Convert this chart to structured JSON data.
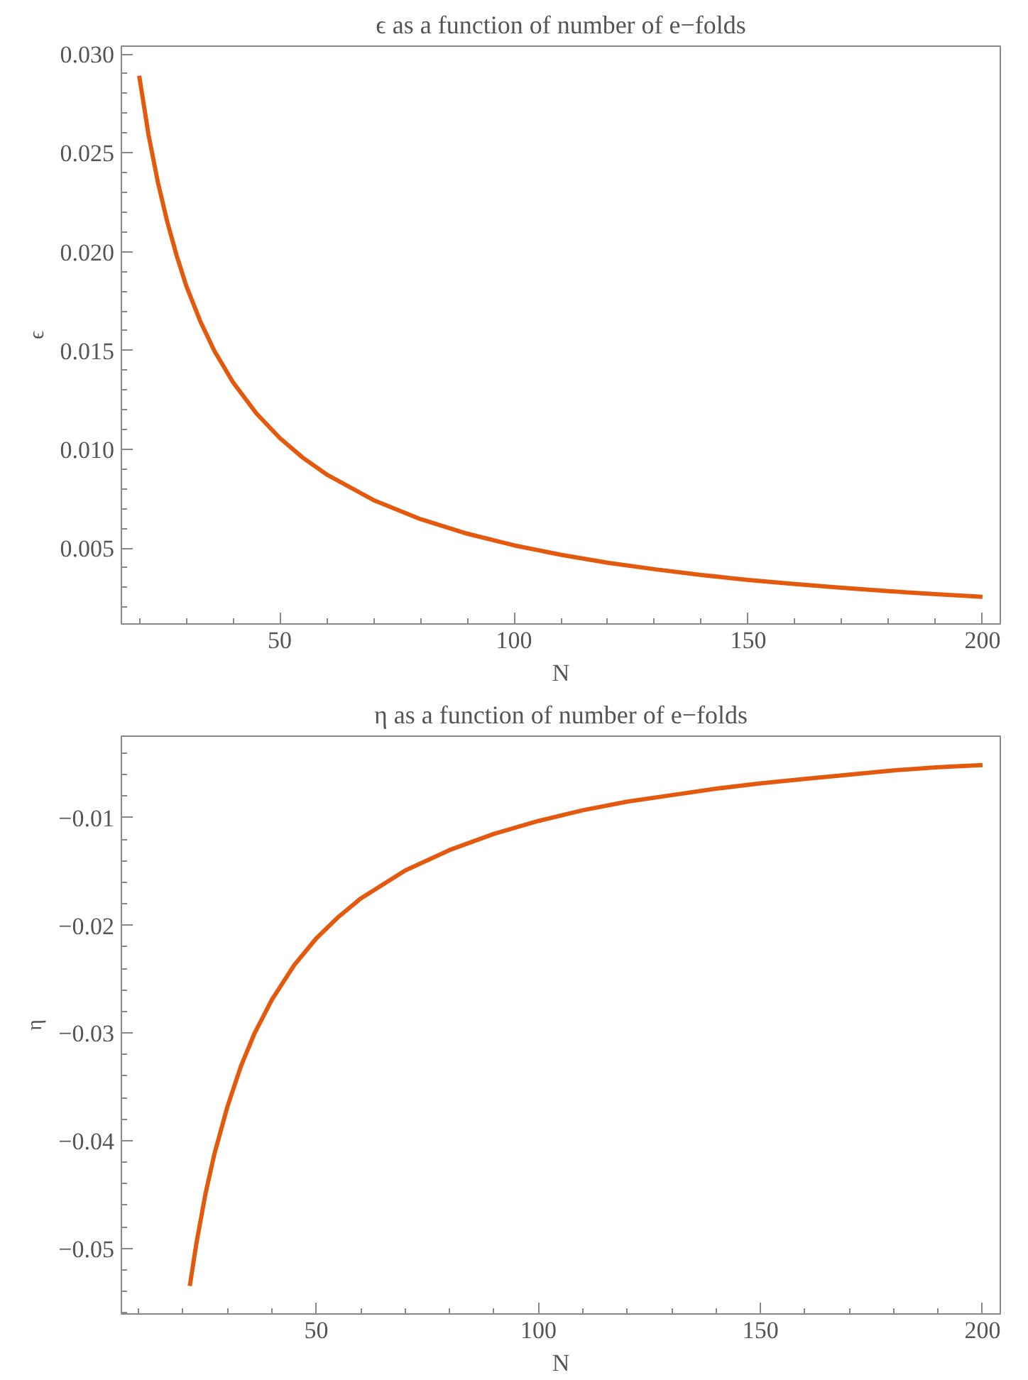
{
  "chart_data": [
    {
      "type": "line",
      "title": "ϵ as a function of number of e−folds",
      "xlabel": "N",
      "ylabel": "ϵ",
      "xlim": [
        16.2,
        203.8
      ],
      "ylim": [
        0.00116,
        0.0304
      ],
      "xticks": [
        50,
        100,
        150,
        200
      ],
      "yticks": [
        {
          "value": 0.005,
          "label": "0.005"
        },
        {
          "value": 0.01,
          "label": "0.010"
        },
        {
          "value": 0.015,
          "label": "0.015"
        },
        {
          "value": 0.02,
          "label": "0.020"
        },
        {
          "value": 0.025,
          "label": "0.025"
        },
        {
          "value": 0.03,
          "label": "0.030"
        }
      ],
      "grid": false,
      "marker": "none",
      "line_style": "solid",
      "series": [
        {
          "color": "#e35a0f",
          "x": [
            20,
            22,
            24,
            26,
            28,
            30,
            33,
            36,
            40,
            45,
            50,
            55,
            60,
            70,
            80,
            90,
            100,
            110,
            120,
            130,
            140,
            150,
            160,
            170,
            180,
            190,
            200
          ],
          "values": [
            0.0289,
            0.0259,
            0.0235,
            0.0215,
            0.0198,
            0.0183,
            0.0165,
            0.015,
            0.0134,
            0.01182,
            0.01057,
            0.00956,
            0.00873,
            0.00743,
            0.00647,
            0.00573,
            0.00514,
            0.00466,
            0.00426,
            0.00393,
            0.00364,
            0.00339,
            0.00318,
            0.00299,
            0.00282,
            0.00267,
            0.00253
          ]
        }
      ]
    },
    {
      "type": "line",
      "title": "η as a function of number of e−folds",
      "xlabel": "N",
      "ylabel": "η",
      "xlim": [
        6.1,
        204
      ],
      "ylim": [
        -0.0561,
        -0.00242
      ],
      "xticks": [
        50,
        100,
        150,
        200
      ],
      "yticks": [
        {
          "value": -0.05,
          "label": "−0.05"
        },
        {
          "value": -0.04,
          "label": "−0.04"
        },
        {
          "value": -0.03,
          "label": "−0.03"
        },
        {
          "value": -0.02,
          "label": "−0.02"
        },
        {
          "value": -0.01,
          "label": "−0.01"
        }
      ],
      "grid": false,
      "marker": "none",
      "line_style": "solid",
      "series": [
        {
          "color": "#e35a0f",
          "x": [
            21.5,
            23,
            25,
            27,
            30,
            33,
            36,
            40,
            45,
            50,
            55,
            60,
            70,
            80,
            90,
            100,
            110,
            120,
            130,
            140,
            150,
            160,
            170,
            180,
            190,
            200
          ],
          "values": [
            -0.0535,
            -0.0495,
            -0.045,
            -0.0413,
            -0.0368,
            -0.0331,
            -0.0301,
            -0.0269,
            -0.0237,
            -0.0212,
            -0.0192,
            -0.0175,
            -0.0149,
            -0.013,
            -0.0115,
            -0.0103,
            -0.0093,
            -0.0085,
            -0.0079,
            -0.0073,
            -0.0068,
            -0.0064,
            -0.006,
            -0.0056,
            -0.0053,
            -0.0051
          ]
        }
      ]
    }
  ]
}
